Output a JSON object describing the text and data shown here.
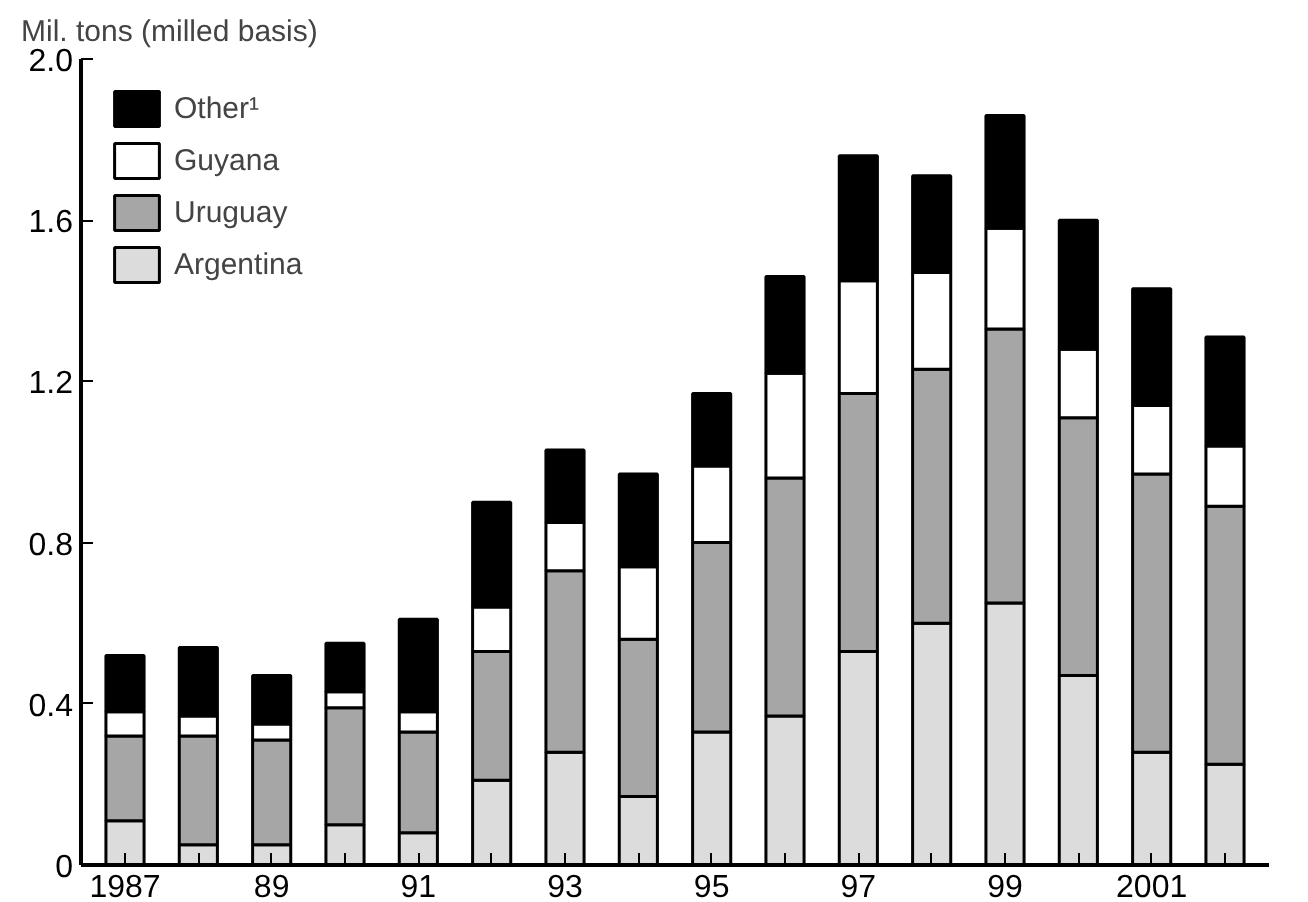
{
  "chart_data": {
    "type": "bar",
    "stacked": true,
    "ylabel": "Mil. tons (milled basis)",
    "x": [
      1987,
      1988,
      1989,
      1990,
      1991,
      1992,
      1993,
      1994,
      1995,
      1996,
      1997,
      1998,
      1999,
      2000,
      2001,
      2002
    ],
    "xlim": [
      1986.4,
      2002.6
    ],
    "xticks": [
      1987,
      {
        "value": 1988,
        "label": null
      },
      {
        "value": 1989,
        "label": "89"
      },
      {
        "value": 1990,
        "label": null
      },
      {
        "value": 1991,
        "label": "91"
      },
      {
        "value": 1992,
        "label": null
      },
      {
        "value": 1993,
        "label": "93"
      },
      {
        "value": 1994,
        "label": null
      },
      {
        "value": 1995,
        "label": "95"
      },
      {
        "value": 1996,
        "label": null
      },
      {
        "value": 1997,
        "label": "97"
      },
      {
        "value": 1998,
        "label": null
      },
      {
        "value": 1999,
        "label": "99"
      },
      {
        "value": 2000,
        "label": null
      },
      2001,
      {
        "value": 2002,
        "label": null
      }
    ],
    "ylim": [
      0,
      2.0
    ],
    "yticks": [
      {
        "value": 0,
        "label": "0"
      },
      {
        "value": 0.4,
        "label": "0.4"
      },
      {
        "value": 0.8,
        "label": "0.8"
      },
      {
        "value": 1.2,
        "label": "1.2"
      },
      {
        "value": 1.6,
        "label": "1.6"
      },
      {
        "value": 2.0,
        "label": "2.0"
      }
    ],
    "grid": false,
    "legend": "top left",
    "series": [
      {
        "name": "Argentina",
        "color": "#dcdcdc",
        "values": [
          0.11,
          0.05,
          0.05,
          0.1,
          0.08,
          0.21,
          0.28,
          0.17,
          0.33,
          0.37,
          0.53,
          0.6,
          0.65,
          0.47,
          0.28,
          0.25
        ]
      },
      {
        "name": "Uruguay",
        "color": "#a6a6a6",
        "values": [
          0.21,
          0.27,
          0.26,
          0.29,
          0.25,
          0.32,
          0.45,
          0.39,
          0.47,
          0.59,
          0.64,
          0.63,
          0.68,
          0.64,
          0.69,
          0.64
        ]
      },
      {
        "name": "Guyana",
        "color": "#ffffff",
        "values": [
          0.06,
          0.05,
          0.04,
          0.04,
          0.05,
          0.11,
          0.12,
          0.18,
          0.19,
          0.26,
          0.28,
          0.24,
          0.25,
          0.17,
          0.17,
          0.15
        ]
      },
      {
        "name": "Other¹",
        "color": "#000000",
        "values": [
          0.14,
          0.17,
          0.12,
          0.12,
          0.23,
          0.26,
          0.18,
          0.23,
          0.18,
          0.24,
          0.31,
          0.24,
          0.28,
          0.32,
          0.29,
          0.27
        ]
      }
    ]
  }
}
